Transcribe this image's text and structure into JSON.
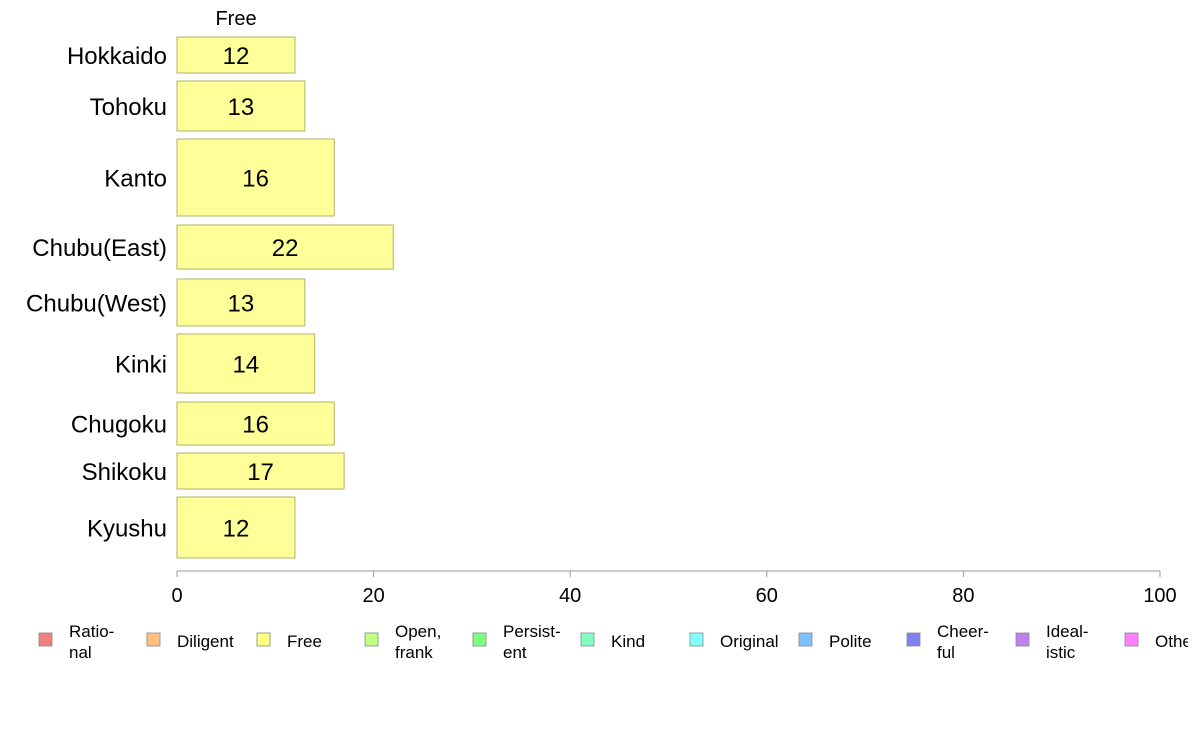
{
  "chart_data": {
    "type": "bar",
    "orientation": "horizontal",
    "column_header": "Free",
    "categories": [
      "Hokkaido",
      "Tohoku",
      "Kanto",
      "Chubu(East)",
      "Chubu(West)",
      "Kinki",
      "Chugoku",
      "Shikoku",
      "Kyushu"
    ],
    "values": [
      12,
      13,
      16,
      22,
      13,
      14,
      16,
      17,
      12
    ],
    "bar_color": "#ffff99",
    "bar_stroke": "#b3b36b",
    "xlim": [
      0,
      100
    ],
    "x_ticks": [
      0,
      20,
      40,
      60,
      80,
      100
    ],
    "grid": false,
    "legend_position": "bottom",
    "legend": [
      {
        "lines": [
          "Ratio-",
          "nal"
        ],
        "color": "#f08080"
      },
      {
        "lines": [
          "Diligent"
        ],
        "color": "#ffc080"
      },
      {
        "lines": [
          "Free"
        ],
        "color": "#ffff80"
      },
      {
        "lines": [
          "Open,",
          "frank"
        ],
        "color": "#c0ff80"
      },
      {
        "lines": [
          "Persist-",
          "ent"
        ],
        "color": "#80ff80"
      },
      {
        "lines": [
          "Kind"
        ],
        "color": "#80ffc0"
      },
      {
        "lines": [
          "Original"
        ],
        "color": "#80ffff"
      },
      {
        "lines": [
          "Polite"
        ],
        "color": "#80c0ff"
      },
      {
        "lines": [
          "Cheer-",
          "ful"
        ],
        "color": "#8080f0"
      },
      {
        "lines": [
          "Ideal-",
          "istic"
        ],
        "color": "#c080f0"
      },
      {
        "lines": [
          "Other"
        ],
        "color": "#ff80ff"
      }
    ]
  }
}
